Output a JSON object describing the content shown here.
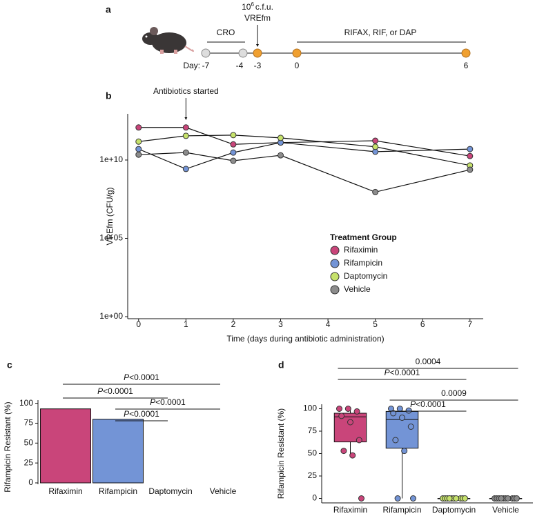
{
  "timeline": {
    "panel_label": "a",
    "treatment1": "CRO",
    "dose": "10",
    "dose_exponent": "6",
    "dose_unit": "c.f.u.",
    "inoculum": "VREfm",
    "treatment2": "RIFAX, RIF, or DAP",
    "day_label": "Day:",
    "days": [
      -7,
      -4,
      -3,
      0,
      6
    ]
  },
  "chart_data": [
    {
      "type": "line",
      "panel_label": "b",
      "ylabel": "VREfm (CFU/g)",
      "xlabel": "Time (days during antibiotic administration)",
      "annotation": {
        "text": "Antibiotics started",
        "x": 1
      },
      "x": [
        0,
        1,
        2,
        3,
        5,
        7
      ],
      "xlim": [
        -0.23,
        7.28
      ],
      "xticks": [
        0,
        1,
        2,
        3,
        4,
        5,
        6,
        7
      ],
      "log_y": true,
      "ylim": [
        0.74,
        8900000000000
      ],
      "yticks": [
        {
          "value": 1,
          "label": "1e+00"
        },
        {
          "value": 100000,
          "label": "1e+05"
        },
        {
          "value": 10000000000,
          "label": "1e+10"
        }
      ],
      "legend_title": "Treatment Group",
      "legend": "center right",
      "series": [
        {
          "name": "Rifaximin",
          "color": "#c9457a",
          "values": [
            1200000000000,
            1200000000000,
            100000000000,
            130000000000,
            170000000000,
            18000000000
          ]
        },
        {
          "name": "Rifampicin",
          "color": "#7394d6",
          "values": [
            50000000000,
            2700000000,
            30000000000,
            130000000000,
            34000000000,
            50000000000
          ]
        },
        {
          "name": "Daptomycin",
          "color": "#c6e26b",
          "values": [
            150000000000,
            350000000000,
            390000000000,
            260000000000,
            70000000000,
            4500000000
          ]
        },
        {
          "name": "Vehicle",
          "color": "#8c8c8c",
          "values": [
            22000000000,
            30000000000,
            9000000000,
            20000000000,
            90000000,
            2400000000
          ]
        }
      ]
    },
    {
      "type": "bar",
      "panel_label": "c",
      "ylabel": "Rifampicin Resistant (%)",
      "categories": [
        "Rifaximin",
        "Rifampicin",
        "Daptomycin",
        "Vehicle"
      ],
      "values": [
        93,
        80,
        0,
        0
      ],
      "colors": [
        "#c9457a",
        "#7394d6",
        "#c6e26b",
        "#8c8c8c"
      ],
      "ylim": [
        0,
        104
      ],
      "yticks": [
        0,
        25,
        50,
        75,
        100
      ],
      "comparisons": [
        {
          "from": 0,
          "to": 3,
          "label": "P<0.0001"
        },
        {
          "from": 0,
          "to": 2,
          "label": "P<0.0001"
        },
        {
          "from": 1,
          "to": 3,
          "label": "P<0.0001"
        },
        {
          "from": 1,
          "to": 2,
          "label": "P<0.0001"
        }
      ]
    },
    {
      "type": "box",
      "panel_label": "d",
      "ylabel": "Rifampicin Resistant (%)",
      "categories": [
        "Rifaximin",
        "Rifampicin",
        "Daptomycin",
        "Vehicle"
      ],
      "colors": [
        "#c9457a",
        "#7394d6",
        "#c6e26b",
        "#8c8c8c"
      ],
      "boxes": [
        {
          "low": 48,
          "q1": 63,
          "median": 91,
          "q3": 95,
          "high": 100
        },
        {
          "low": 0,
          "q1": 56,
          "median": 88,
          "q3": 97,
          "high": 100
        },
        {
          "low": 0,
          "q1": 0,
          "median": 0,
          "q3": 0,
          "high": 0
        },
        {
          "low": 0,
          "q1": 0,
          "median": 0,
          "q3": 0,
          "high": 0
        }
      ],
      "points": [
        [
          100,
          100,
          97,
          92,
          85,
          65,
          53,
          48,
          0
        ],
        [
          100,
          100,
          98,
          95,
          90,
          80,
          65,
          53,
          0,
          0
        ],
        [
          0,
          0,
          0,
          0,
          0,
          0,
          0,
          0,
          0,
          0
        ],
        [
          0,
          0,
          0,
          0,
          0,
          0,
          0,
          0,
          0,
          0
        ]
      ],
      "ylim": [
        -5,
        105
      ],
      "yticks": [
        0,
        25,
        50,
        75,
        100
      ],
      "comparisons": [
        {
          "from": 0,
          "to": 3,
          "label": "0.0004"
        },
        {
          "from": 0,
          "to": 2,
          "label": "P<0.0001"
        },
        {
          "from": 1,
          "to": 3,
          "label": "0.0009"
        },
        {
          "from": 1,
          "to": 2,
          "label": "P<0.0001"
        }
      ]
    }
  ]
}
